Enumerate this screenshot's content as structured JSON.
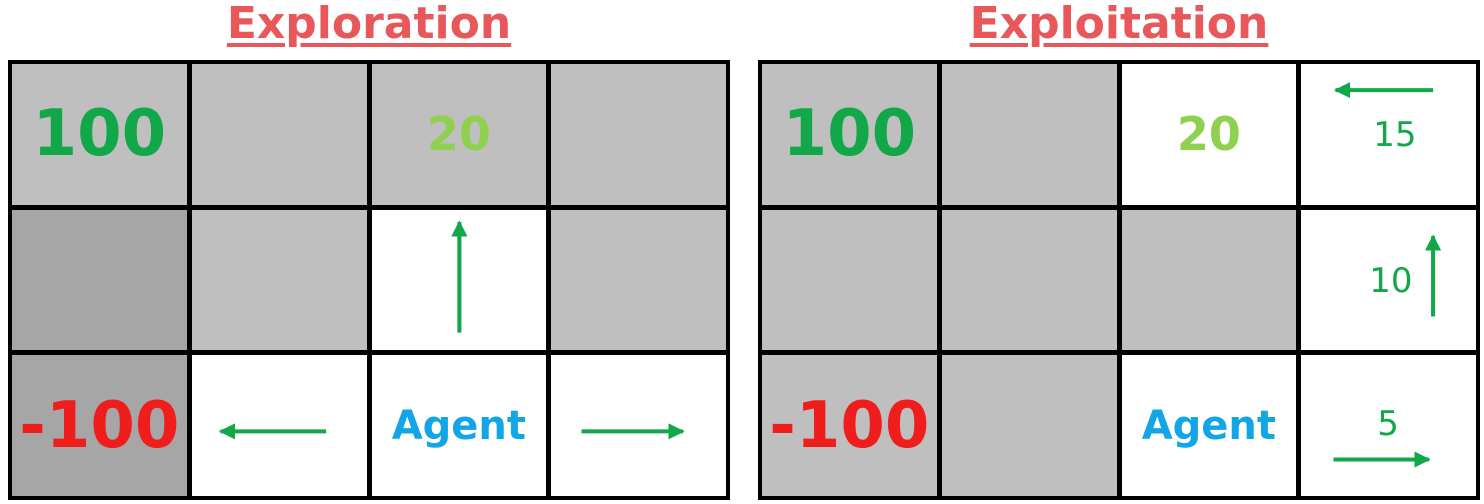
{
  "exploration": {
    "title": "Exploration",
    "goal_reward": "100",
    "small_reward": "20",
    "penalty": "-100",
    "agent_label": "Agent"
  },
  "exploitation": {
    "title": "Exploitation",
    "goal_reward": "100",
    "small_reward": "20",
    "penalty": "-100",
    "agent_label": "Agent",
    "value_top_right": "15",
    "value_mid_right": "10",
    "value_bottom_right": "5"
  },
  "colors": {
    "title": "#e8585a",
    "goal": "#12a84a",
    "small_reward": "#8fd14f",
    "penalty": "#f01d1d",
    "agent": "#13a6e6",
    "arrow": "#12a84a",
    "cell_gray": "#bfbfbf",
    "cell_dark_gray": "#a6a6a6"
  }
}
